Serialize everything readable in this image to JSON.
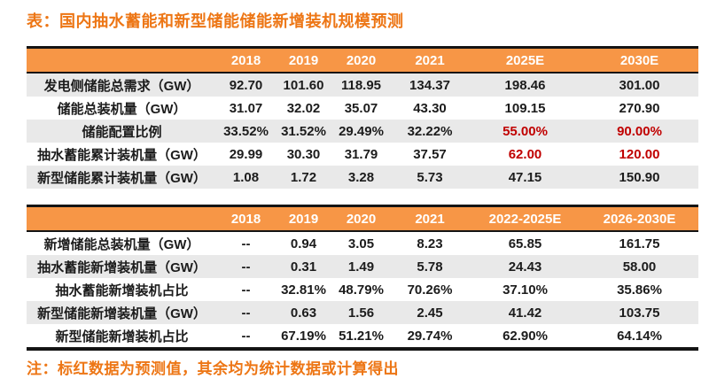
{
  "title": "表：国内抽水蓄能和新型储能储能新增装机规模预测",
  "note": "注：标红数据为预测值，其余均为统计数据或计算得出",
  "colors": {
    "accent_orange": "#ED7615",
    "header_orange": "#F79646",
    "stripe_gray": "#E9E9E9",
    "forecast_red": "#C00000",
    "border_black": "#141414"
  },
  "tables": [
    {
      "name": "cumulative-scale-forecast",
      "columns": [
        "",
        "2018",
        "2019",
        "2020",
        "2021",
        "2025E",
        "2030E"
      ],
      "first_row_shaded": true,
      "rows": [
        {
          "label": "发电侧储能总需求（GW）",
          "values": [
            "92.70",
            "101.60",
            "118.95",
            "134.37",
            "198.46",
            "301.00"
          ],
          "red": []
        },
        {
          "label": "储能总装机量（GW）",
          "values": [
            "31.07",
            "32.02",
            "35.07",
            "43.30",
            "109.15",
            "270.90"
          ],
          "red": []
        },
        {
          "label": "储能配置比例",
          "values": [
            "33.52%",
            "31.52%",
            "29.49%",
            "32.22%",
            "55.00%",
            "90.00%"
          ],
          "red": [
            4,
            5
          ]
        },
        {
          "label": "抽水蓄能累计装机量（GW）",
          "values": [
            "29.99",
            "30.30",
            "31.79",
            "37.57",
            "62.00",
            "120.00"
          ],
          "red": [
            4,
            5
          ]
        },
        {
          "label": "新型储能累计装机量（GW）",
          "values": [
            "1.08",
            "1.72",
            "3.28",
            "5.73",
            "47.15",
            "150.90"
          ],
          "red": []
        }
      ]
    },
    {
      "name": "incremental-scale-forecast",
      "columns": [
        "",
        "2018",
        "2019",
        "2020",
        "2021",
        "2022-2025E",
        "2026-2030E"
      ],
      "first_row_shaded": false,
      "rows": [
        {
          "label": "新增储能总装机量（GW）",
          "values": [
            "--",
            "0.94",
            "3.05",
            "8.23",
            "65.85",
            "161.75"
          ],
          "red": []
        },
        {
          "label": "抽水蓄能新增装机量（GW）",
          "values": [
            "--",
            "0.31",
            "1.49",
            "5.78",
            "24.43",
            "58.00"
          ],
          "red": []
        },
        {
          "label": "抽水蓄能新增装机占比",
          "values": [
            "--",
            "32.81%",
            "48.79%",
            "70.26%",
            "37.10%",
            "35.86%"
          ],
          "red": []
        },
        {
          "label": "新型储能新增装机量（GW）",
          "values": [
            "--",
            "0.63",
            "1.56",
            "2.45",
            "41.42",
            "103.75"
          ],
          "red": []
        },
        {
          "label": "新型储能新增装机占比",
          "values": [
            "--",
            "67.19%",
            "51.21%",
            "29.74%",
            "62.90%",
            "64.14%"
          ],
          "red": []
        }
      ]
    }
  ]
}
